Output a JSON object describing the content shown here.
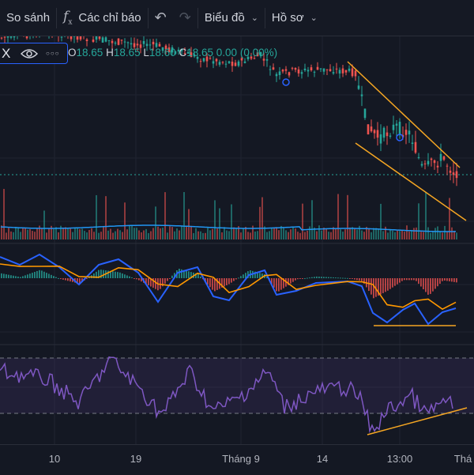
{
  "toolbar": {
    "compare_label": "So sánh",
    "indicators_label": "Các chỉ báo",
    "chart_label": "Biểu đồ",
    "profile_label": "Hồ sơ"
  },
  "legend": {
    "close_symbol": "X",
    "more_symbol": "○○○",
    "open_label": "O",
    "open_value": "18.65",
    "high_label": "H",
    "high_value": "18.65",
    "low_label": "L",
    "low_value": "18.60",
    "close_label": "C",
    "close_value": "18.65",
    "change_value": "0.00",
    "change_pct": "(0.00%)"
  },
  "time_axis": [
    "10",
    "19",
    "Tháng 9",
    "14",
    "13:00",
    "Thá"
  ],
  "colors": {
    "up": "#26a69a",
    "down": "#ef5350",
    "macd": "#2962ff",
    "signal": "#ff9800",
    "rsi": "#7e57c2",
    "trend": "#f5a623"
  }
}
